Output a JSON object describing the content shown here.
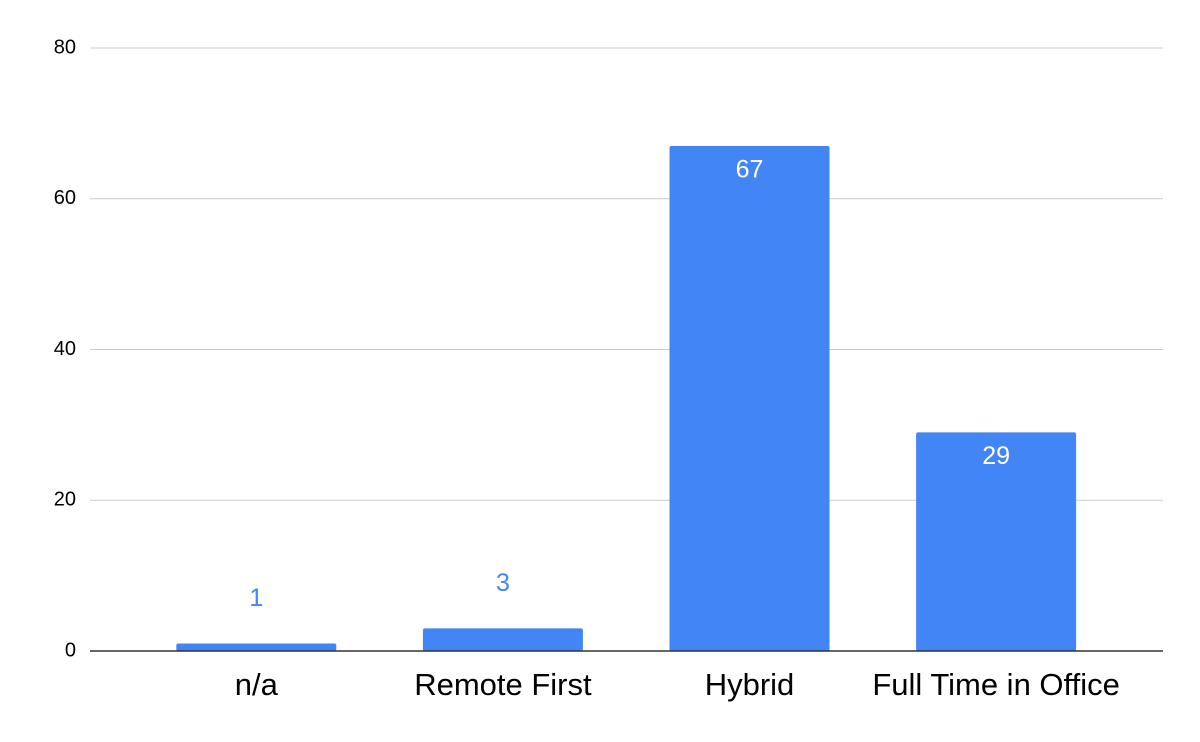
{
  "chart_data": {
    "type": "bar",
    "categories": [
      "n/a",
      "Remote First",
      "Hybrid",
      "Full Time in Office"
    ],
    "values": [
      1,
      3,
      67,
      29
    ],
    "color": "#4285f4",
    "ylim": [
      0,
      80
    ],
    "yticks": [
      0,
      20,
      40,
      60,
      80
    ],
    "grid": true
  }
}
